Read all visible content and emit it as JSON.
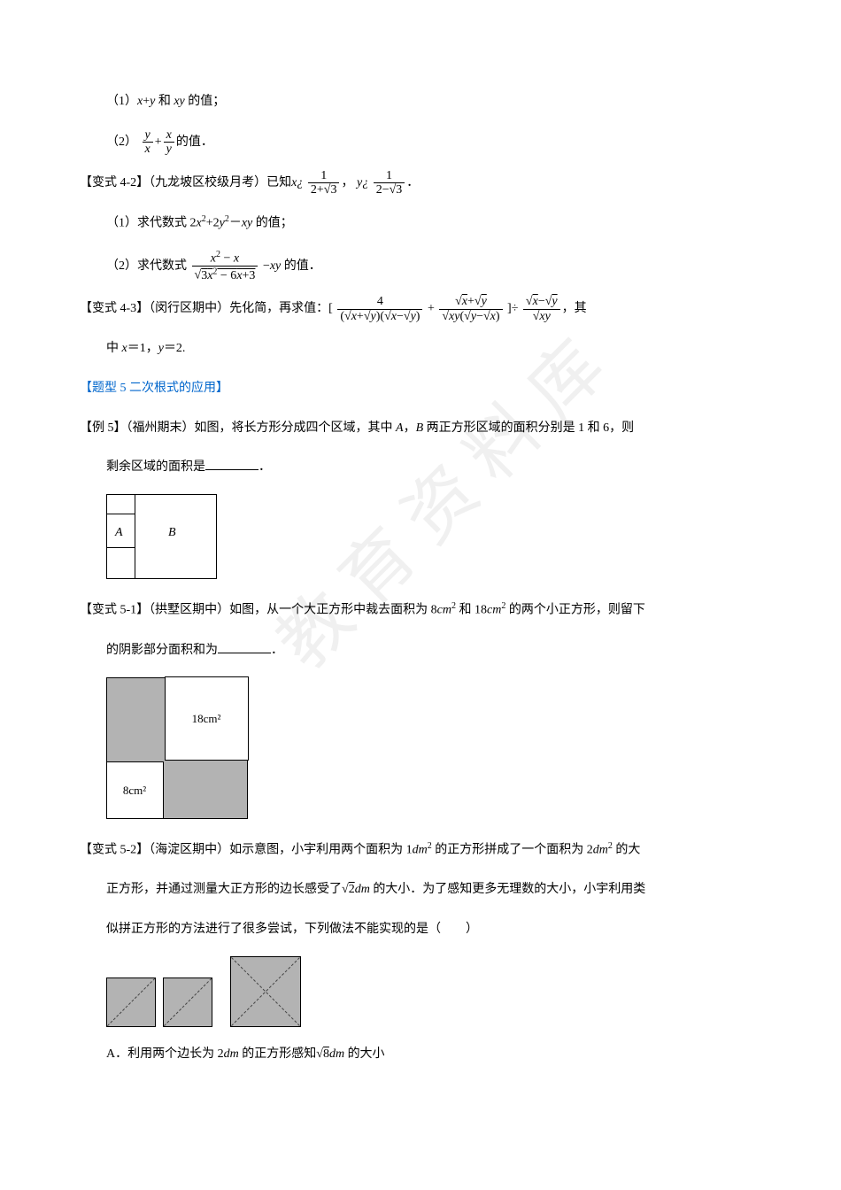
{
  "watermark": "教育资料库",
  "q1": {
    "part1": "（1）x+y 和 xy 的值；",
    "part2_prefix": "（2）",
    "part2_suffix": "的值．"
  },
  "q42": {
    "label": "【变式 4-2】",
    "source": "（九龙坡区校级月考）已知",
    "x_eq": "x¿",
    "comma": "，",
    "y_eq": "y¿",
    "period": "．",
    "part1": "（1）求代数式 2x²+2y²－xy 的值；",
    "part2_prefix": "（2）求代数式",
    "part2_suffix": "－xy 的值．",
    "frac1_num": "1",
    "frac1_den": "2+√3",
    "frac2_num": "1",
    "frac2_den": "2−√3",
    "expr_num": "x² − x",
    "expr_den": "√(3x² − 6x + 3)"
  },
  "q43": {
    "label": "【变式 4-3】",
    "source": "（闵行区期中）先化简，再求值：",
    "suffix_before_comma": "",
    "comma": "，其",
    "where": "中 x＝1，y＝2."
  },
  "type5": {
    "title": "【题型 5  二次根式的应用】"
  },
  "ex5": {
    "label": "【例 5】",
    "source": "（福州期末）如图，将长方形分成四个区域，其中 A，B 两正方形区域的面积分别是 1 和 6，则",
    "cont": "剩余区域的面积是",
    "period": "．",
    "A": "A",
    "B": "B"
  },
  "q51": {
    "label": "【变式 5-1】",
    "source": "（拱墅区期中）如图，从一个大正方形中裁去面积为 8cm² 和 18cm² 的两个小正方形，则留下",
    "cont": "的阴影部分面积和为",
    "period": "．",
    "label18": "18cm²",
    "label8": "8cm²"
  },
  "q52": {
    "label": "【变式 5-2】",
    "source": "（海淀区期中）如示意图，小宇利用两个面积为 1dm² 的正方形拼成了一个面积为 2dm² 的大",
    "line2": "正方形，并通过测量大正方形的边长感受了√2dm 的大小．为了感知更多无理数的大小，小宇利用类",
    "line3": "似拼正方形的方法进行了很多尝试，下列做法不能实现的是（　　）",
    "optA": "A．利用两个边长为 2dm 的正方形感知√8dm 的大小"
  },
  "style": {
    "watermark_color": "#f0f0f0",
    "blue": "#0066cc",
    "gray_fill": "#b3b3b3",
    "page_bg": "#ffffff"
  }
}
